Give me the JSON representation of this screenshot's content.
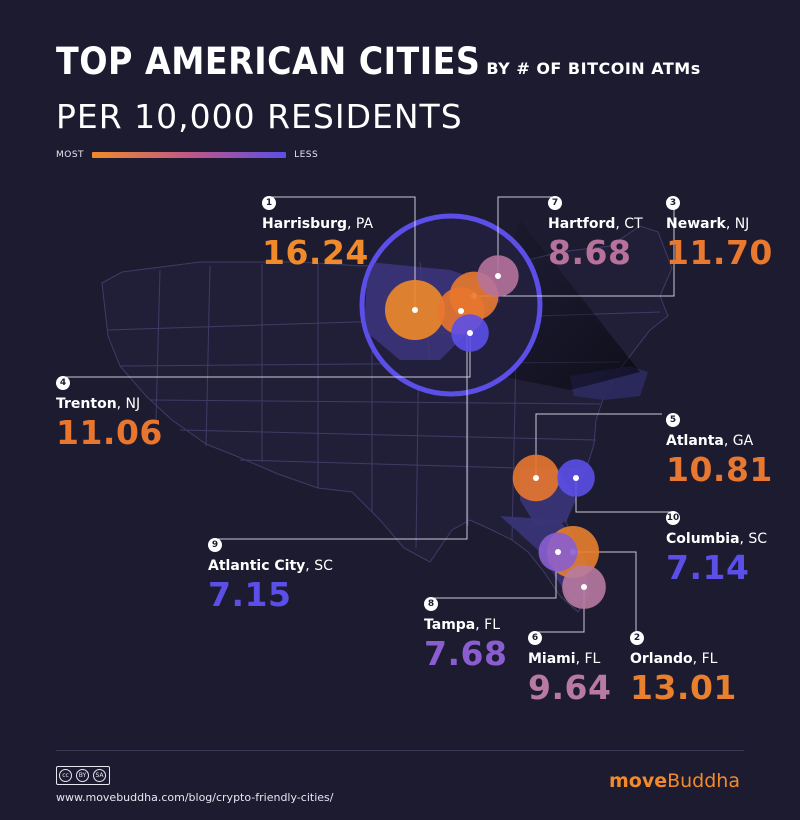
{
  "title": {
    "main": "TOP AMERICAN CITIES",
    "suffix": "BY # OF BITCOIN ATMs",
    "sub": "PER 10,000 RESIDENTS"
  },
  "legend": {
    "most": "MOST",
    "less": "LESS"
  },
  "chart_data": {
    "type": "map",
    "title": "TOP AMERICAN CITIES BY # OF BITCOIN ATMs PER 10,000 RESIDENTS",
    "unit": "Bitcoin ATMs per 10,000 residents",
    "color_scale": {
      "most": "#f08a2a",
      "mid": "#b9548f",
      "less": "#5b4fe8"
    },
    "cities": [
      {
        "rank": "1",
        "city": "Harrisburg",
        "state": "PA",
        "value": 16.24,
        "label": "16.24",
        "color": "#f08a2a"
      },
      {
        "rank": "2",
        "city": "Orlando",
        "state": "FL",
        "value": 13.01,
        "label": "13.01",
        "color": "#e8802e"
      },
      {
        "rank": "3",
        "city": "Newark",
        "state": "NJ",
        "value": 11.7,
        "label": "11.70",
        "color": "#e9792f"
      },
      {
        "rank": "4",
        "city": "Trenton",
        "state": "NJ",
        "value": 11.06,
        "label": "11.06",
        "color": "#e8762e"
      },
      {
        "rank": "5",
        "city": "Atlanta",
        "state": "GA",
        "value": 10.81,
        "label": "10.81",
        "color": "#e8772f"
      },
      {
        "rank": "6",
        "city": "Miami",
        "state": "FL",
        "value": 9.64,
        "label": "9.64",
        "color": "#b87aa0"
      },
      {
        "rank": "7",
        "city": "Hartford",
        "state": "CT",
        "value": 8.68,
        "label": "8.68",
        "color": "#b6729b"
      },
      {
        "rank": "8",
        "city": "Tampa",
        "state": "FL",
        "value": 7.68,
        "label": "7.68",
        "color": "#8a5ed0"
      },
      {
        "rank": "9",
        "city": "Atlantic City",
        "state": "SC",
        "value": 7.15,
        "label": "7.15",
        "color": "#5b4fe8"
      },
      {
        "rank": "10",
        "city": "Columbia",
        "state": "SC",
        "value": 7.14,
        "label": "7.14",
        "color": "#5b4fe8"
      }
    ]
  },
  "footer": {
    "cc_by": "BY",
    "cc_sa": "SA",
    "url": "www.movebuddha.com/blog/crypto-friendly-cities/",
    "brand_bold": "move",
    "brand_regular": "Buddha"
  }
}
